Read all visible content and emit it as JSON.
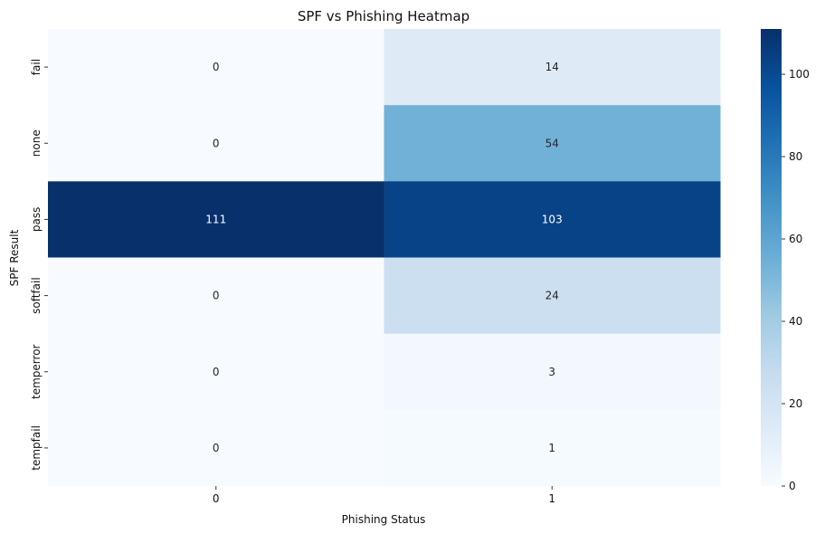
{
  "chart_data": {
    "type": "heatmap",
    "title": "SPF vs Phishing Heatmap",
    "xlabel": "Phishing Status",
    "ylabel": "SPF Result",
    "x_categories": [
      "0",
      "1"
    ],
    "y_categories": [
      "fail",
      "none",
      "pass",
      "softfail",
      "temperror",
      "tempfail"
    ],
    "values": [
      [
        0,
        14
      ],
      [
        0,
        54
      ],
      [
        111,
        103
      ],
      [
        0,
        24
      ],
      [
        0,
        3
      ],
      [
        0,
        1
      ]
    ],
    "colormap": "Blues",
    "colorbar": {
      "min": 0,
      "max": 111,
      "ticks": [
        "0",
        "20",
        "40",
        "60",
        "80",
        "100"
      ]
    },
    "annotations": true,
    "grid": false
  }
}
